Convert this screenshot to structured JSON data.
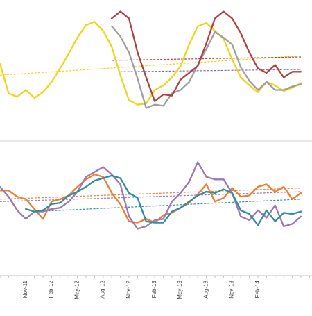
{
  "chart_data": [
    {
      "type": "line",
      "panel": "top",
      "title": "",
      "xlabel": "",
      "ylabel": "",
      "grid": false,
      "legend": "none",
      "x_labels": [
        "Nov-11",
        "Feb-12",
        "May-12",
        "Aug-12",
        "Nov-12",
        "Feb-13",
        "May-13",
        "Aug-13",
        "Nov-13",
        "Feb-14"
      ],
      "series": [
        {
          "color": "#f2d41c",
          "x": [
            0,
            1,
            2,
            3,
            4,
            5,
            6,
            7,
            8,
            9,
            10,
            11,
            12,
            13,
            14,
            15,
            16,
            17,
            18,
            19,
            20,
            21,
            22,
            23,
            24,
            25,
            26,
            27,
            28,
            29,
            30,
            31,
            32,
            33,
            34,
            35
          ],
          "values": [
            100,
            74,
            71,
            77,
            70,
            75,
            84,
            96,
            109,
            123,
            134,
            137,
            129,
            115,
            90,
            68,
            64,
            65,
            77,
            81,
            88,
            98,
            117,
            133,
            136,
            129,
            122,
            104,
            88,
            81,
            75,
            84,
            81,
            76,
            79,
            83
          ]
        },
        {
          "color": "#9e9e9e",
          "x": [
            13,
            14,
            15,
            16,
            17,
            18,
            19,
            20,
            21,
            22,
            23,
            24,
            25,
            26,
            27,
            28,
            29,
            30,
            31,
            32,
            33,
            34,
            35
          ],
          "values": [
            133,
            124,
            110,
            87,
            61,
            64,
            63,
            74,
            77,
            84,
            99,
            113,
            128,
            123,
            117,
            97,
            85,
            77,
            84,
            77,
            77,
            80,
            82
          ]
        },
        {
          "color": "#b0413e",
          "x": [
            13,
            14,
            15,
            16,
            17,
            18,
            19,
            20,
            21,
            22,
            23,
            24,
            25,
            26,
            27,
            28,
            29,
            30,
            31,
            32,
            33,
            34,
            35
          ],
          "values": [
            140,
            146,
            140,
            110,
            88,
            67,
            73,
            72,
            86,
            92,
            98,
            118,
            140,
            146,
            140,
            127,
            110,
            96,
            92,
            99,
            88,
            93,
            93
          ]
        }
      ],
      "trendlines": [
        {
          "color": "#f2d41c",
          "x": [
            0,
            35
          ],
          "values": [
            90,
            107
          ]
        },
        {
          "color": "#b0413e",
          "x": [
            13,
            35
          ],
          "values": [
            103,
            106
          ]
        },
        {
          "color": "#7f6fa8",
          "x": [
            14,
            35
          ],
          "values": [
            93,
            95
          ]
        }
      ],
      "xlim": [
        0,
        35
      ],
      "ylim": [
        40,
        150
      ]
    },
    {
      "type": "line",
      "panel": "bottom",
      "title": "",
      "xlabel": "",
      "ylabel": "",
      "grid": false,
      "legend": "none",
      "x_labels": [
        "Nov-11",
        "Feb-12",
        "May-12",
        "Aug-12",
        "Nov-12",
        "Feb-13",
        "May-13",
        "Aug-13",
        "Nov-13",
        "Feb-14"
      ],
      "series": [
        {
          "color": "#ed7d31",
          "x": [
            0,
            1,
            2,
            3,
            4,
            5,
            6,
            7,
            8,
            9,
            10,
            11,
            12,
            13,
            14,
            15,
            16,
            17,
            18,
            19,
            20,
            21,
            22,
            23,
            24,
            25,
            26,
            27,
            28,
            29,
            30,
            31,
            32,
            33,
            34,
            35
          ],
          "values": [
            105,
            105,
            100,
            98,
            90,
            82,
            96,
            98,
            101,
            108,
            114,
            118,
            116,
            103,
            94,
            80,
            79,
            82,
            79,
            85,
            87,
            91,
            95,
            102,
            110,
            96,
            99,
            107,
            100,
            101,
            108,
            110,
            104,
            108,
            98,
            103
          ]
        },
        {
          "color": "#9b78b5",
          "x": [
            0,
            1,
            2,
            3,
            4,
            5,
            6,
            7,
            8,
            9,
            10,
            11,
            12,
            13,
            14,
            15,
            16,
            17,
            18,
            19,
            20,
            21,
            22,
            23,
            24,
            25,
            26,
            27,
            28,
            29,
            30,
            31,
            32,
            33,
            34,
            35
          ],
          "values": [
            108,
            100,
            89,
            82,
            88,
            88,
            90,
            91,
            96,
            104,
            116,
            120,
            124,
            118,
            110,
            84,
            74,
            76,
            81,
            82,
            96,
            103,
            112,
            128,
            116,
            114,
            114,
            103,
            84,
            81,
            89,
            83,
            93,
            76,
            78,
            84
          ]
        },
        {
          "color": "#2f8da3",
          "x": [
            3,
            4,
            5,
            6,
            7,
            8,
            9,
            10,
            11,
            12,
            13,
            14,
            15,
            16,
            17,
            18,
            19,
            20,
            21,
            22,
            23,
            24,
            25,
            26,
            27,
            28,
            29,
            30,
            31,
            32,
            33,
            34,
            35
          ],
          "values": [
            90,
            88,
            89,
            94,
            95,
            101,
            104,
            108,
            113,
            115,
            117,
            115,
            103,
            99,
            80,
            79,
            79,
            88,
            91,
            96,
            101,
            104,
            103,
            106,
            103,
            89,
            86,
            77,
            89,
            80,
            87,
            86,
            88
          ]
        }
      ],
      "trendlines": [
        {
          "color": "#ed7d31",
          "x": [
            0,
            35
          ],
          "values": [
            98,
            107
          ]
        },
        {
          "color": "#9b78b5",
          "x": [
            0,
            35
          ],
          "values": [
            96,
            104
          ]
        },
        {
          "color": "#2f8da3",
          "x": [
            4,
            35
          ],
          "values": [
            88,
            98
          ]
        }
      ],
      "xlim": [
        0,
        35
      ],
      "ylim": [
        40,
        140
      ]
    }
  ]
}
